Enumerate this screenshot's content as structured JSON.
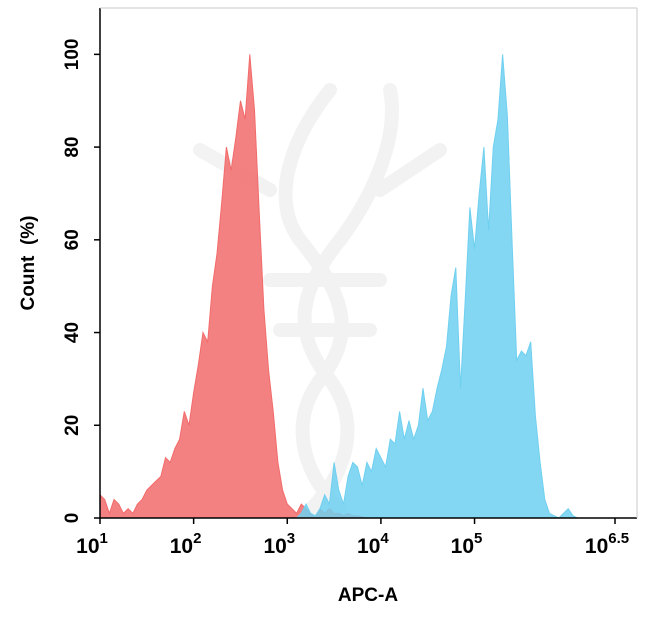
{
  "chart_data": {
    "type": "area",
    "title": "",
    "xlabel": "APC-A",
    "ylabel": "Count  (%)",
    "x_scale": "log",
    "xlim": [
      1,
      6.5
    ],
    "ylim": [
      0,
      110
    ],
    "x_ticks": [
      {
        "base": "10",
        "exp": "1",
        "value": 1
      },
      {
        "base": "10",
        "exp": "2",
        "value": 2
      },
      {
        "base": "10",
        "exp": "3",
        "value": 3
      },
      {
        "base": "10",
        "exp": "4",
        "value": 4
      },
      {
        "base": "10",
        "exp": "5",
        "value": 5
      },
      {
        "base": "10",
        "exp": "6.5",
        "value": 6.5
      }
    ],
    "y_ticks": [
      "0",
      "20",
      "40",
      "60",
      "80",
      "100"
    ],
    "legend": "none",
    "grid": false,
    "series": [
      {
        "color": "#f26b6b",
        "x": [
          1.0,
          1.05,
          1.1,
          1.15,
          1.2,
          1.25,
          1.3,
          1.35,
          1.4,
          1.45,
          1.5,
          1.55,
          1.6,
          1.65,
          1.7,
          1.75,
          1.8,
          1.85,
          1.9,
          1.95,
          2.0,
          2.05,
          2.1,
          2.15,
          2.2,
          2.25,
          2.3,
          2.35,
          2.4,
          2.45,
          2.5,
          2.55,
          2.6,
          2.65,
          2.7,
          2.75,
          2.8,
          2.85,
          2.9,
          2.95,
          3.0,
          3.05,
          3.1,
          3.15,
          3.2,
          3.25,
          3.3,
          3.35,
          3.4,
          3.45,
          3.5,
          3.55,
          3.6,
          3.65,
          3.7,
          3.75,
          3.85
        ],
        "y": [
          5,
          4,
          1,
          4,
          3,
          1,
          2,
          1,
          3,
          4,
          6,
          7,
          8,
          9,
          13,
          12,
          15,
          17,
          23,
          20,
          27,
          33,
          40,
          38,
          50,
          57,
          68,
          80,
          75,
          82,
          90,
          86,
          100,
          88,
          66,
          45,
          32,
          23,
          12,
          6,
          3,
          2,
          1,
          3,
          2,
          1,
          0,
          2,
          1,
          2,
          1,
          1,
          0.5,
          1,
          0.5,
          0.5,
          0
        ]
      },
      {
        "color": "#6fd0f0",
        "x": [
          3.1,
          3.15,
          3.2,
          3.25,
          3.3,
          3.35,
          3.4,
          3.45,
          3.5,
          3.55,
          3.6,
          3.65,
          3.7,
          3.75,
          3.8,
          3.85,
          3.9,
          3.95,
          4.0,
          4.05,
          4.1,
          4.15,
          4.2,
          4.25,
          4.3,
          4.35,
          4.4,
          4.45,
          4.5,
          4.55,
          4.6,
          4.65,
          4.7,
          4.75,
          4.8,
          4.85,
          4.9,
          4.95,
          5.0,
          5.05,
          5.1,
          5.15,
          5.2,
          5.25,
          5.3,
          5.35,
          5.4,
          5.45,
          5.5,
          5.55,
          5.6,
          5.65,
          5.7,
          5.75,
          5.8,
          5.85,
          5.9,
          5.95,
          6.0,
          6.05,
          6.1,
          6.15,
          6.2,
          6.25,
          6.3,
          6.35,
          6.4
        ],
        "y": [
          0,
          1,
          3,
          1,
          0.5,
          2,
          5,
          3,
          12,
          6,
          3,
          9,
          12,
          11,
          7,
          12,
          10,
          15,
          13,
          11,
          17,
          16,
          23,
          17,
          21,
          17,
          20,
          28,
          21,
          23,
          28,
          32,
          37,
          48,
          54,
          28,
          47,
          67,
          58,
          70,
          80,
          62,
          80,
          86,
          100,
          87,
          60,
          34,
          36,
          35,
          38,
          22,
          12,
          4,
          1,
          0.5,
          0,
          1,
          2,
          0.5,
          0,
          0,
          0,
          0,
          0,
          0,
          0
        ]
      }
    ]
  },
  "watermark": "dna-helix-icon"
}
